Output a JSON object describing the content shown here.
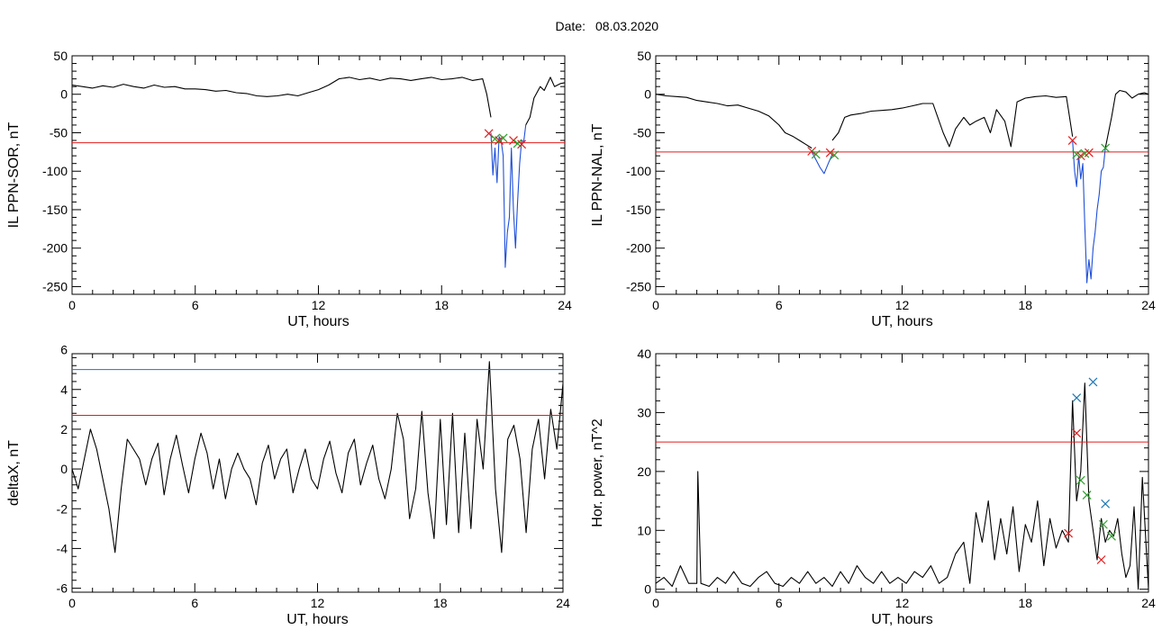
{
  "figure": {
    "title_label": "Date:",
    "title_value": "08.03.2020"
  },
  "chart_data": [
    {
      "type": "line",
      "id": "p1",
      "xlabel": "UT, hours",
      "ylabel": "IL PPN-SOR, nT",
      "xlim": [
        0,
        24
      ],
      "ylim": [
        -260,
        50
      ],
      "xticks": [
        0,
        6,
        12,
        18,
        24
      ],
      "yticks": [
        50,
        0,
        -50,
        -100,
        -150,
        -200,
        -250
      ],
      "grid": false,
      "threshold": {
        "y": -63,
        "color": "#e31a1c"
      },
      "series": [
        {
          "color": "#000000",
          "x": [
            0,
            0.5,
            1,
            1.5,
            2,
            2.5,
            3,
            3.5,
            4,
            4.5,
            5,
            5.5,
            6,
            6.5,
            7,
            7.5,
            8,
            8.5,
            9,
            9.5,
            10,
            10.5,
            11,
            11.5,
            12,
            12.5,
            13,
            13.5,
            14,
            14.5,
            15,
            15.5,
            16,
            16.5,
            17,
            17.5,
            18,
            18.5,
            19,
            19.5,
            20,
            20.2,
            20.4
          ],
          "y": [
            12,
            10,
            8,
            11,
            9,
            13,
            10,
            8,
            12,
            9,
            10,
            7,
            7,
            6,
            4,
            5,
            2,
            1,
            -2,
            -3,
            -2,
            0,
            -2,
            2,
            6,
            12,
            20,
            22,
            19,
            21,
            18,
            21,
            20,
            18,
            20,
            22,
            19,
            20,
            22,
            18,
            20,
            0,
            -30
          ]
        },
        {
          "color": "#000000",
          "x": [
            22.1,
            22.3,
            22.5,
            22.8,
            23,
            23.3,
            23.5,
            23.8,
            24
          ],
          "y": [
            -40,
            -30,
            -5,
            10,
            5,
            22,
            10,
            14,
            15
          ]
        },
        {
          "color": "#1f4fd8",
          "x": [
            20.4,
            20.5,
            20.6,
            20.7,
            20.8,
            20.9,
            21.0,
            21.05,
            21.1,
            21.2,
            21.3,
            21.4,
            21.5,
            21.6,
            21.7,
            21.8,
            21.9,
            22.0,
            22.1
          ],
          "y": [
            -50,
            -105,
            -70,
            -115,
            -55,
            -60,
            -80,
            -150,
            -225,
            -180,
            -160,
            -70,
            -150,
            -200,
            -140,
            -90,
            -60,
            -62,
            -40
          ]
        }
      ],
      "markers": [
        {
          "x": 20.3,
          "y": -51,
          "color": "#e31a1c"
        },
        {
          "x": 20.6,
          "y": -58,
          "color": "#2ca02c"
        },
        {
          "x": 20.8,
          "y": -60,
          "color": "#e31a1c"
        },
        {
          "x": 21.0,
          "y": -57,
          "color": "#2ca02c"
        },
        {
          "x": 21.5,
          "y": -60,
          "color": "#e31a1c"
        },
        {
          "x": 21.7,
          "y": -64,
          "color": "#2ca02c"
        },
        {
          "x": 21.9,
          "y": -65,
          "color": "#e31a1c"
        }
      ]
    },
    {
      "type": "line",
      "id": "p2",
      "xlabel": "UT, hours",
      "ylabel": "IL PPN-NAL, nT",
      "xlim": [
        0,
        24
      ],
      "ylim": [
        -260,
        50
      ],
      "xticks": [
        0,
        6,
        12,
        18,
        24
      ],
      "yticks": [
        50,
        0,
        -50,
        -100,
        -150,
        -200,
        -250
      ],
      "grid": false,
      "threshold": {
        "y": -75,
        "color": "#e31a1c"
      },
      "series": [
        {
          "color": "#000000",
          "x": [
            0,
            0.5,
            1,
            1.5,
            2,
            2.5,
            3,
            3.5,
            4,
            4.5,
            5,
            5.5,
            6,
            6.3,
            6.7,
            7,
            7.3,
            7.6
          ],
          "y": [
            0,
            -2,
            -3,
            -4,
            -8,
            -10,
            -12,
            -15,
            -14,
            -18,
            -22,
            -28,
            -40,
            -50,
            -55,
            -60,
            -65,
            -70
          ]
        },
        {
          "color": "#000000",
          "x": [
            8.6,
            8.9,
            9.2,
            9.5,
            10,
            10.5,
            11,
            11.5,
            12,
            12.5,
            13,
            13.5,
            14,
            14.3,
            14.6,
            15,
            15.3,
            15.6,
            16,
            16.3,
            16.6,
            17,
            17.3,
            17.6,
            18,
            18.5,
            19,
            19.5,
            20,
            20.1,
            20.3
          ],
          "y": [
            -60,
            -50,
            -30,
            -27,
            -25,
            -22,
            -21,
            -20,
            -18,
            -15,
            -12,
            -12,
            -50,
            -68,
            -45,
            -30,
            -40,
            -35,
            -30,
            -50,
            -20,
            -35,
            -68,
            -10,
            -5,
            -3,
            -2,
            -4,
            -3,
            -20,
            -55
          ]
        },
        {
          "color": "#000000",
          "x": [
            21.9,
            22.2,
            22.4,
            22.6,
            22.9,
            23.2,
            23.5,
            23.8,
            24
          ],
          "y": [
            -70,
            -30,
            0,
            5,
            3,
            -5,
            0,
            2,
            0
          ]
        },
        {
          "color": "#1f4fd8",
          "x": [
            7.6,
            7.8,
            8.0,
            8.2,
            8.4,
            8.6
          ],
          "y": [
            -75,
            -85,
            -95,
            -103,
            -90,
            -78
          ]
        },
        {
          "color": "#1f4fd8",
          "x": [
            20.3,
            20.4,
            20.5,
            20.6,
            20.7,
            20.8,
            20.9,
            21.0,
            21.1,
            21.2,
            21.3,
            21.4,
            21.5,
            21.6,
            21.7,
            21.8,
            21.9
          ],
          "y": [
            -60,
            -100,
            -120,
            -80,
            -110,
            -90,
            -170,
            -245,
            -215,
            -240,
            -200,
            -180,
            -150,
            -130,
            -100,
            -95,
            -70
          ]
        }
      ],
      "markers": [
        {
          "x": 7.6,
          "y": -74,
          "color": "#e31a1c"
        },
        {
          "x": 7.8,
          "y": -78,
          "color": "#2ca02c"
        },
        {
          "x": 8.5,
          "y": -76,
          "color": "#e31a1c"
        },
        {
          "x": 8.7,
          "y": -79,
          "color": "#2ca02c"
        },
        {
          "x": 20.3,
          "y": -60,
          "color": "#e31a1c"
        },
        {
          "x": 20.5,
          "y": -78,
          "color": "#2ca02c"
        },
        {
          "x": 20.7,
          "y": -80,
          "color": "#e31a1c"
        },
        {
          "x": 20.9,
          "y": -77,
          "color": "#2ca02c"
        },
        {
          "x": 21.1,
          "y": -76,
          "color": "#e31a1c"
        },
        {
          "x": 21.9,
          "y": -70,
          "color": "#2ca02c"
        }
      ]
    },
    {
      "type": "line",
      "id": "p3",
      "xlabel": "UT, hours",
      "ylabel": "deltaX, nT",
      "xlim": [
        0,
        24
      ],
      "ylim": [
        -6.2,
        5.8
      ],
      "xticks": [
        0,
        6,
        12,
        18,
        24
      ],
      "yticks": [
        6,
        4,
        2,
        0,
        -2,
        -4,
        -6
      ],
      "grid": false,
      "thresholds": [
        {
          "y": 5.0,
          "color": "#1f6fd8"
        },
        {
          "y": 2.7,
          "color": "#e31a1c"
        }
      ],
      "series": [
        {
          "color": "#000000",
          "x": [
            0,
            0.3,
            0.6,
            0.9,
            1.2,
            1.5,
            1.8,
            2.1,
            2.4,
            2.7,
            3.0,
            3.3,
            3.6,
            3.9,
            4.2,
            4.5,
            4.8,
            5.1,
            5.4,
            5.7,
            6.0,
            6.3,
            6.6,
            6.9,
            7.2,
            7.5,
            7.8,
            8.1,
            8.4,
            8.7,
            9.0,
            9.3,
            9.6,
            9.9,
            10.2,
            10.5,
            10.8,
            11.1,
            11.4,
            11.7,
            12.0,
            12.3,
            12.6,
            12.9,
            13.2,
            13.5,
            13.8,
            14.1,
            14.4,
            14.7,
            15.0,
            15.3,
            15.6,
            15.9,
            16.2,
            16.5,
            16.8,
            17.1,
            17.4,
            17.7,
            18.0,
            18.3,
            18.6,
            18.9,
            19.2,
            19.5,
            19.8,
            20.1,
            20.4,
            20.7,
            21.0,
            21.3,
            21.6,
            21.9,
            22.2,
            22.5,
            22.8,
            23.1,
            23.4,
            23.7,
            24.0
          ],
          "y": [
            0,
            -1,
            0.5,
            2,
            1,
            -0.5,
            -2,
            -4.2,
            -1,
            1.5,
            1,
            0.5,
            -0.8,
            0.5,
            1.3,
            -1.3,
            0.5,
            1.7,
            0.2,
            -1.2,
            0.5,
            1.8,
            0.8,
            -1,
            0.5,
            -1.5,
            0,
            0.8,
            0,
            -0.5,
            -1.8,
            0.3,
            1.2,
            -0.5,
            0.5,
            1.0,
            -1.2,
            0,
            1.0,
            -0.5,
            -1.0,
            0.5,
            1.4,
            -0.2,
            -1.2,
            0.8,
            1.5,
            -0.8,
            0.3,
            1.2,
            -0.5,
            -1.5,
            0,
            2.8,
            1.5,
            -2.5,
            -1,
            2.9,
            -1.2,
            -3.5,
            2.5,
            -2.8,
            2.8,
            -3.2,
            1.8,
            -3.0,
            2.5,
            0,
            5.4,
            -1,
            -4.2,
            1.5,
            2.2,
            0.5,
            -3.2,
            1,
            2.5,
            -0.5,
            3.0,
            1,
            4.3
          ]
        }
      ],
      "markers": []
    },
    {
      "type": "line",
      "id": "p4",
      "xlabel": "UT, hours",
      "ylabel": "Hor. power, nT^2",
      "xlim": [
        0,
        24
      ],
      "ylim": [
        -0.5,
        40
      ],
      "xticks": [
        0,
        6,
        12,
        18,
        24
      ],
      "yticks": [
        40,
        30,
        20,
        10,
        0
      ],
      "grid": false,
      "threshold": {
        "y": 25,
        "color": "#e31a1c"
      },
      "series": [
        {
          "color": "#000000",
          "x": [
            0,
            0.4,
            0.8,
            1.2,
            1.6,
            2.0,
            2.05,
            2.2,
            2.6,
            3.0,
            3.4,
            3.8,
            4.2,
            4.6,
            5.0,
            5.4,
            5.8,
            6.2,
            6.6,
            7.0,
            7.4,
            7.8,
            8.2,
            8.6,
            9.0,
            9.4,
            9.8,
            10.2,
            10.6,
            11.0,
            11.4,
            11.8,
            12.2,
            12.6,
            13.0,
            13.4,
            13.8,
            14.2,
            14.6,
            15.0,
            15.3,
            15.6,
            15.9,
            16.2,
            16.5,
            16.8,
            17.1,
            17.4,
            17.7,
            18.0,
            18.3,
            18.6,
            18.9,
            19.2,
            19.5,
            19.8,
            20.1,
            20.3,
            20.5,
            20.7,
            20.9,
            21.1,
            21.3,
            21.5,
            21.7,
            21.9,
            22.1,
            22.3,
            22.5,
            22.7,
            22.9,
            23.1,
            23.3,
            23.5,
            23.7,
            24.0
          ],
          "y": [
            1,
            2,
            0.5,
            4,
            1,
            1,
            20,
            1,
            0.5,
            2,
            1,
            3,
            1,
            0.5,
            2,
            3,
            1,
            0.5,
            2,
            1,
            3,
            1,
            2,
            0.5,
            3,
            1,
            4,
            2,
            1,
            3,
            1,
            2,
            1,
            3,
            2,
            4,
            1,
            2,
            6,
            8,
            1,
            13,
            8,
            15,
            5,
            12,
            6,
            14,
            3,
            11,
            8,
            15,
            4,
            12,
            7,
            10,
            8,
            32,
            15,
            20,
            35,
            15,
            10,
            5,
            12,
            8,
            10,
            9,
            12,
            6,
            2,
            4,
            14,
            0,
            19,
            0
          ]
        }
      ],
      "markers": [
        {
          "x": 20.5,
          "y": 32.5,
          "color": "#1f77b4"
        },
        {
          "x": 21.3,
          "y": 35.2,
          "color": "#1f77b4"
        },
        {
          "x": 21.9,
          "y": 14.5,
          "color": "#1f77b4"
        },
        {
          "x": 20.5,
          "y": 26.5,
          "color": "#e31a1c"
        },
        {
          "x": 20.1,
          "y": 9.5,
          "color": "#e31a1c"
        },
        {
          "x": 21.7,
          "y": 5,
          "color": "#e31a1c"
        },
        {
          "x": 20.7,
          "y": 18.5,
          "color": "#2ca02c"
        },
        {
          "x": 21.0,
          "y": 16,
          "color": "#2ca02c"
        },
        {
          "x": 21.8,
          "y": 11,
          "color": "#2ca02c"
        },
        {
          "x": 22.2,
          "y": 9,
          "color": "#2ca02c"
        }
      ]
    }
  ]
}
